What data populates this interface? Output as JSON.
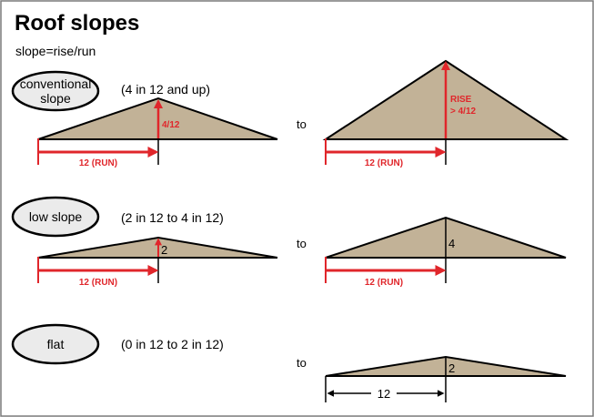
{
  "title": "Roof slopes",
  "formula": "slope=rise/run",
  "connector": "to",
  "colors": {
    "roof_fill": "#c2b297",
    "arrow_red": "#e0262b",
    "outline": "#000000",
    "pill_fill": "#ebebeb",
    "frame": "#7a7a7a"
  },
  "rows": [
    {
      "category": [
        "conventional",
        "slope"
      ],
      "range": "(4 in 12 and up)",
      "left": {
        "rise_label": "4/12",
        "run_label": "12 (RUN)"
      },
      "right": {
        "rise_label": [
          "RISE",
          "> 4/12"
        ],
        "run_label": "12 (RUN)"
      }
    },
    {
      "category": [
        "low slope"
      ],
      "range": "(2 in 12 to 4 in 12)",
      "left": {
        "rise_label": "2",
        "run_label": "12 (RUN)"
      },
      "right": {
        "rise_label": "4",
        "run_label": "12 (RUN)"
      }
    },
    {
      "category": [
        "flat"
      ],
      "range": "(0 in 12 to 2 in 12)",
      "right": {
        "rise_label": "2",
        "run_label": "12"
      }
    }
  ]
}
